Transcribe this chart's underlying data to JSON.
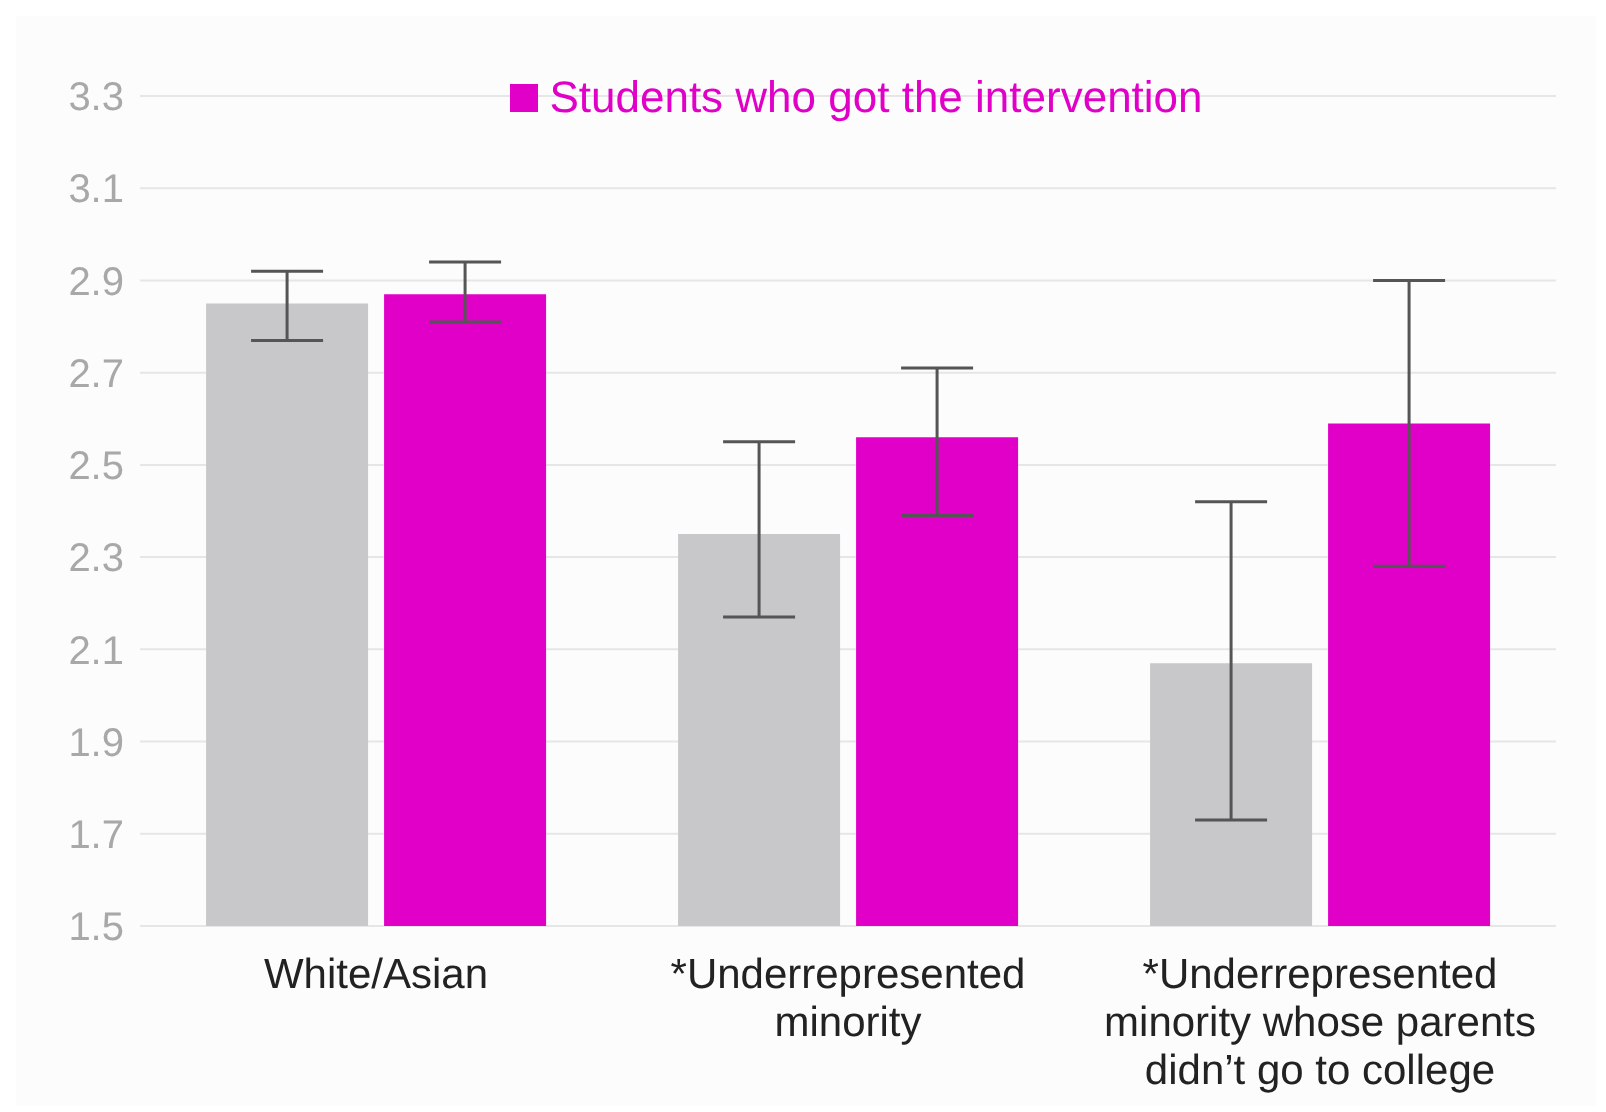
{
  "chart_data": {
    "type": "bar",
    "categories": [
      "White/Asian",
      "*Underrepresented minority",
      "*Underrepresented minority whose parents didn’t go to college"
    ],
    "series": [
      {
        "color": "#c8c7c9",
        "values": [
          2.85,
          2.35,
          2.07
        ],
        "errors": [
          [
            2.77,
            2.92
          ],
          [
            2.17,
            2.55
          ],
          [
            1.73,
            2.42
          ]
        ]
      },
      {
        "name": "Students who got the intervention",
        "color": "#e000c8",
        "values": [
          2.87,
          2.56,
          2.59
        ],
        "errors": [
          [
            2.81,
            2.94
          ],
          [
            2.39,
            2.71
          ],
          [
            2.28,
            2.9
          ]
        ]
      }
    ],
    "ylim": [
      1.5,
      3.3
    ],
    "yticks": [
      1.5,
      1.7,
      1.9,
      2.1,
      2.3,
      2.5,
      2.7,
      2.9,
      3.1,
      3.3
    ],
    "grid": "y",
    "legend": "top"
  }
}
